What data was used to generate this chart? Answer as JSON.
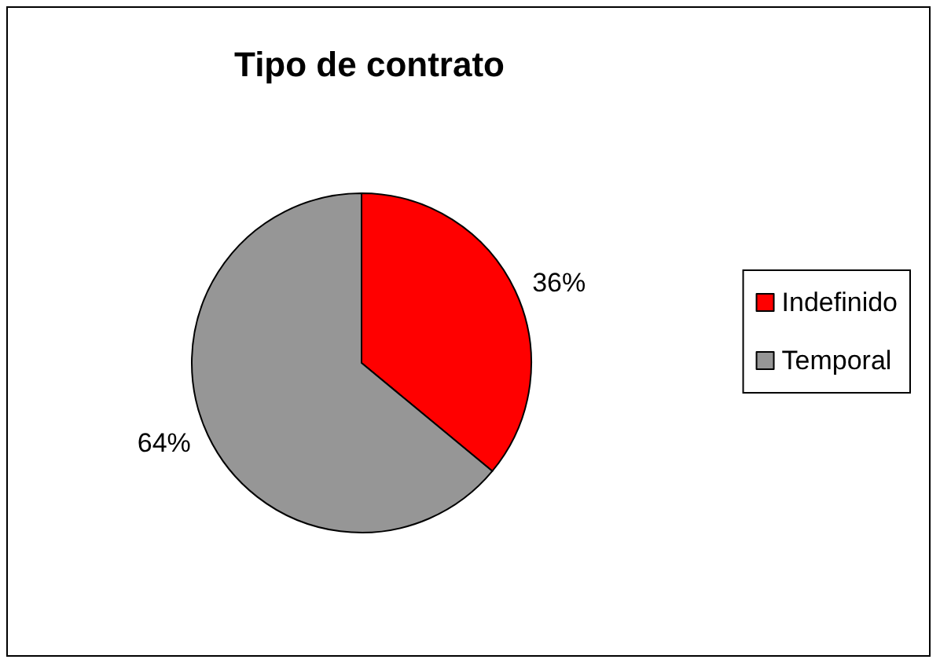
{
  "chart_data": {
    "type": "pie",
    "title": "Tipo de contrato",
    "categories": [
      "Indefinido",
      "Temporal"
    ],
    "values": [
      36,
      64
    ],
    "value_labels": [
      "36%",
      "64%"
    ],
    "colors": [
      "#ff0000",
      "#969696"
    ],
    "legend": "right"
  }
}
